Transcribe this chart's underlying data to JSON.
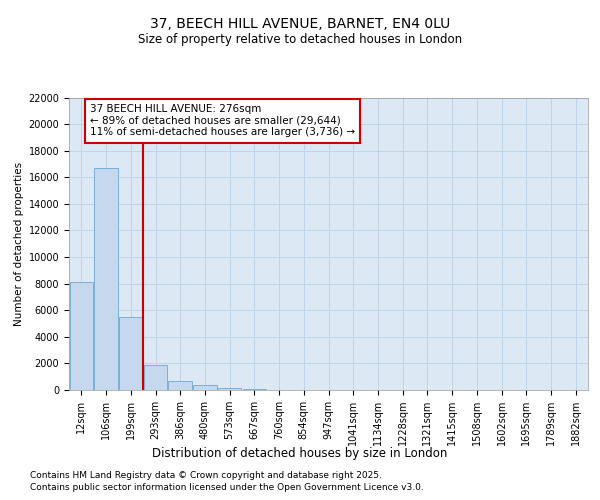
{
  "title": "37, BEECH HILL AVENUE, BARNET, EN4 0LU",
  "subtitle": "Size of property relative to detached houses in London",
  "xlabel": "Distribution of detached houses by size in London",
  "ylabel": "Number of detached properties",
  "bar_categories": [
    "12sqm",
    "106sqm",
    "199sqm",
    "293sqm",
    "386sqm",
    "480sqm",
    "573sqm",
    "667sqm",
    "760sqm",
    "854sqm",
    "947sqm",
    "1041sqm",
    "1134sqm",
    "1228sqm",
    "1321sqm",
    "1415sqm",
    "1508sqm",
    "1602sqm",
    "1695sqm",
    "1789sqm",
    "1882sqm"
  ],
  "bar_values": [
    8100,
    16700,
    5500,
    1900,
    700,
    350,
    150,
    50,
    20,
    5,
    3,
    2,
    1,
    1,
    1,
    1,
    0,
    0,
    0,
    0,
    0
  ],
  "bar_color": "#c5d8ed",
  "bar_edge_color": "#7aafd4",
  "grid_color": "#c0d4e8",
  "background_color": "#dce9f5",
  "vline_x_idx": 2.5,
  "vline_color": "#cc0000",
  "annotation_text": "37 BEECH HILL AVENUE: 276sqm\n← 89% of detached houses are smaller (29,644)\n11% of semi-detached houses are larger (3,736) →",
  "annotation_box_color": "#ffffff",
  "annotation_box_edge": "#cc0000",
  "ylim": [
    0,
    22000
  ],
  "yticks": [
    0,
    2000,
    4000,
    6000,
    8000,
    10000,
    12000,
    14000,
    16000,
    18000,
    20000,
    22000
  ],
  "footer_line1": "Contains HM Land Registry data © Crown copyright and database right 2025.",
  "footer_line2": "Contains public sector information licensed under the Open Government Licence v3.0.",
  "title_fontsize": 10,
  "subtitle_fontsize": 8.5,
  "tick_fontsize": 7,
  "ylabel_fontsize": 7.5,
  "xlabel_fontsize": 8.5,
  "footer_fontsize": 6.5,
  "annot_fontsize": 7.5
}
